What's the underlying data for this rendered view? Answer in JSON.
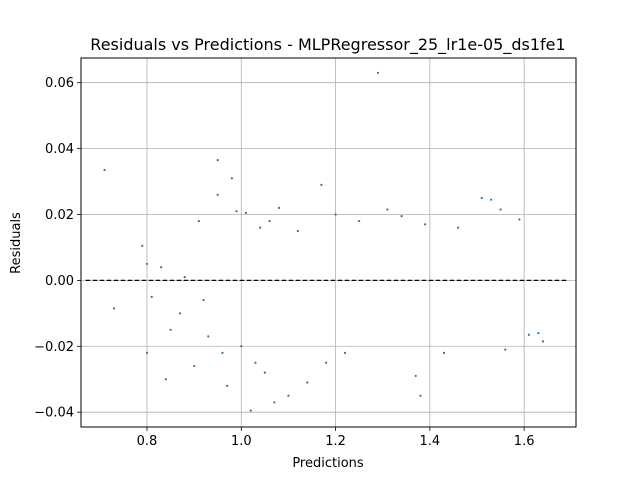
{
  "chart_data": {
    "type": "scatter",
    "title": "Residuals vs Predictions - MLPRegressor_25_lr1e-05_ds1fe1",
    "xlabel": "Predictions",
    "ylabel": "Residuals",
    "xlim": [
      0.66,
      1.71
    ],
    "ylim": [
      -0.0445,
      0.0675
    ],
    "xticks": [
      0.8,
      1.0,
      1.2,
      1.4,
      1.6
    ],
    "xtick_labels": [
      "0.8",
      "1.0",
      "1.2",
      "1.4",
      "1.6"
    ],
    "yticks": [
      -0.04,
      -0.02,
      0.0,
      0.02,
      0.04,
      0.06
    ],
    "ytick_labels": [
      "−0.04",
      "−0.02",
      "0.00",
      "0.02",
      "0.04",
      "0.06"
    ],
    "grid": true,
    "point_color": "#1f77b4",
    "reference_line": {
      "y": 0.0,
      "x_from": 0.67,
      "x_to": 1.69,
      "style": "dashed",
      "color": "#000000"
    },
    "series": [
      {
        "points": [
          [
            0.71,
            0.0335
          ],
          [
            0.73,
            -0.0085
          ],
          [
            0.79,
            0.0105
          ],
          [
            0.8,
            -0.022
          ],
          [
            0.8,
            0.005
          ],
          [
            0.81,
            -0.005
          ],
          [
            0.83,
            0.004
          ],
          [
            0.84,
            -0.03
          ],
          [
            0.85,
            -0.015
          ],
          [
            0.87,
            -0.01
          ],
          [
            0.88,
            0.001
          ],
          [
            0.9,
            -0.026
          ],
          [
            0.91,
            0.018
          ],
          [
            0.92,
            -0.006
          ],
          [
            0.93,
            -0.017
          ],
          [
            0.95,
            0.0365
          ],
          [
            0.95,
            0.026
          ],
          [
            0.96,
            -0.022
          ],
          [
            0.97,
            -0.032
          ],
          [
            0.98,
            0.031
          ],
          [
            0.99,
            0.021
          ],
          [
            1.0,
            -0.02
          ],
          [
            1.01,
            0.0205
          ],
          [
            1.02,
            -0.0395
          ],
          [
            1.03,
            -0.025
          ],
          [
            1.04,
            0.016
          ],
          [
            1.05,
            -0.028
          ],
          [
            1.06,
            0.018
          ],
          [
            1.07,
            -0.037
          ],
          [
            1.08,
            0.022
          ],
          [
            1.1,
            -0.035
          ],
          [
            1.12,
            0.015
          ],
          [
            1.14,
            -0.031
          ],
          [
            1.17,
            0.029
          ],
          [
            1.18,
            -0.025
          ],
          [
            1.2,
            0.02
          ],
          [
            1.22,
            -0.022
          ],
          [
            1.25,
            0.018
          ],
          [
            1.29,
            0.063
          ],
          [
            1.31,
            0.0215
          ],
          [
            1.34,
            0.0195
          ],
          [
            1.37,
            -0.029
          ],
          [
            1.39,
            0.017
          ],
          [
            1.38,
            -0.035
          ],
          [
            1.43,
            -0.022
          ],
          [
            1.46,
            0.016
          ],
          [
            1.51,
            0.025
          ],
          [
            1.53,
            0.0245
          ],
          [
            1.55,
            0.0215
          ],
          [
            1.56,
            -0.021
          ],
          [
            1.59,
            0.0185
          ],
          [
            1.61,
            -0.0165
          ],
          [
            1.63,
            -0.016
          ],
          [
            1.64,
            -0.0185
          ]
        ]
      }
    ]
  }
}
